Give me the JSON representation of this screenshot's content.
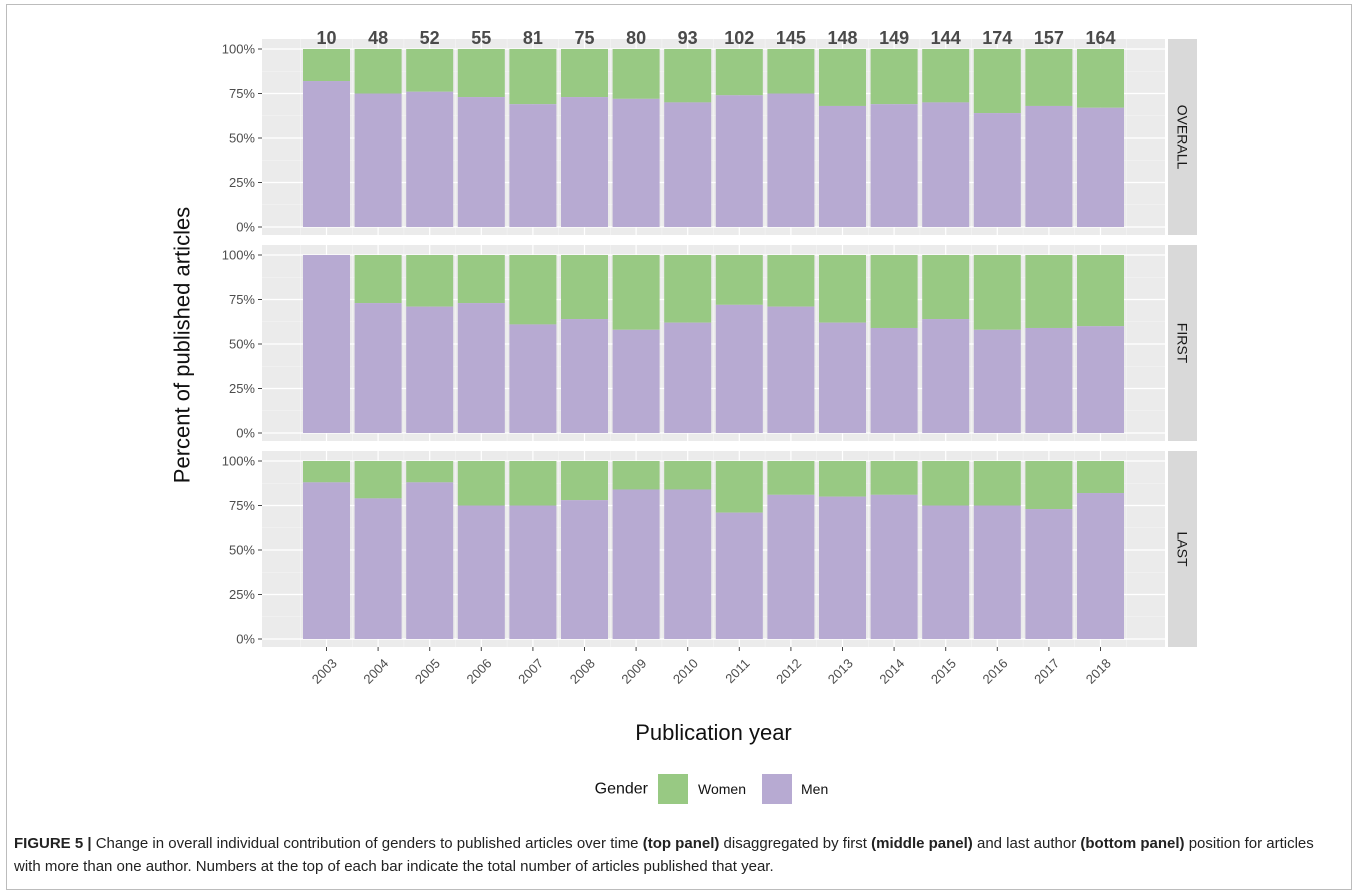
{
  "chart_data": {
    "type": "bar",
    "stacked": true,
    "normalized_percent": true,
    "categories": [
      "2003",
      "2004",
      "2005",
      "2006",
      "2007",
      "2008",
      "2009",
      "2010",
      "2011",
      "2012",
      "2013",
      "2014",
      "2015",
      "2016",
      "2017",
      "2018"
    ],
    "totals": [
      10,
      48,
      52,
      55,
      81,
      75,
      80,
      93,
      102,
      145,
      148,
      149,
      144,
      174,
      157,
      164
    ],
    "panels": [
      {
        "label": "OVERALL",
        "men_pct": [
          82,
          75,
          76,
          73,
          69,
          73,
          72,
          70,
          74,
          75,
          68,
          69,
          70,
          64,
          68,
          67
        ]
      },
      {
        "label": "FIRST",
        "men_pct": [
          100,
          73,
          71,
          73,
          61,
          64,
          58,
          62,
          72,
          71,
          62,
          59,
          64,
          58,
          59,
          60
        ]
      },
      {
        "label": "LAST",
        "men_pct": [
          88,
          79,
          88,
          75,
          75,
          78,
          84,
          84,
          71,
          81,
          80,
          81,
          75,
          75,
          73,
          82
        ]
      }
    ],
    "series_colors": {
      "Women": "#98c983",
      "Men": "#b7aad2"
    },
    "yticks": [
      "0%",
      "25%",
      "50%",
      "75%",
      "100%"
    ],
    "ylim": [
      0,
      100
    ],
    "xlabel": "Publication year",
    "ylabel": "Percent of published articles",
    "legend": {
      "title": "Gender",
      "items": [
        "Women",
        "Men"
      ],
      "placement": "bottom"
    },
    "grid": true
  },
  "caption": {
    "fig": "FIGURE 5 |",
    "t1": " Change in overall individual contribution of genders to published articles over time ",
    "b1": "(top panel)",
    "t2": " disaggregated by first ",
    "b2": "(middle panel)",
    "t3": " and last author ",
    "b3": "(bottom panel)",
    "t4": " position for articles with more than one author. Numbers at the top of each bar indicate the total number of articles published that year."
  }
}
